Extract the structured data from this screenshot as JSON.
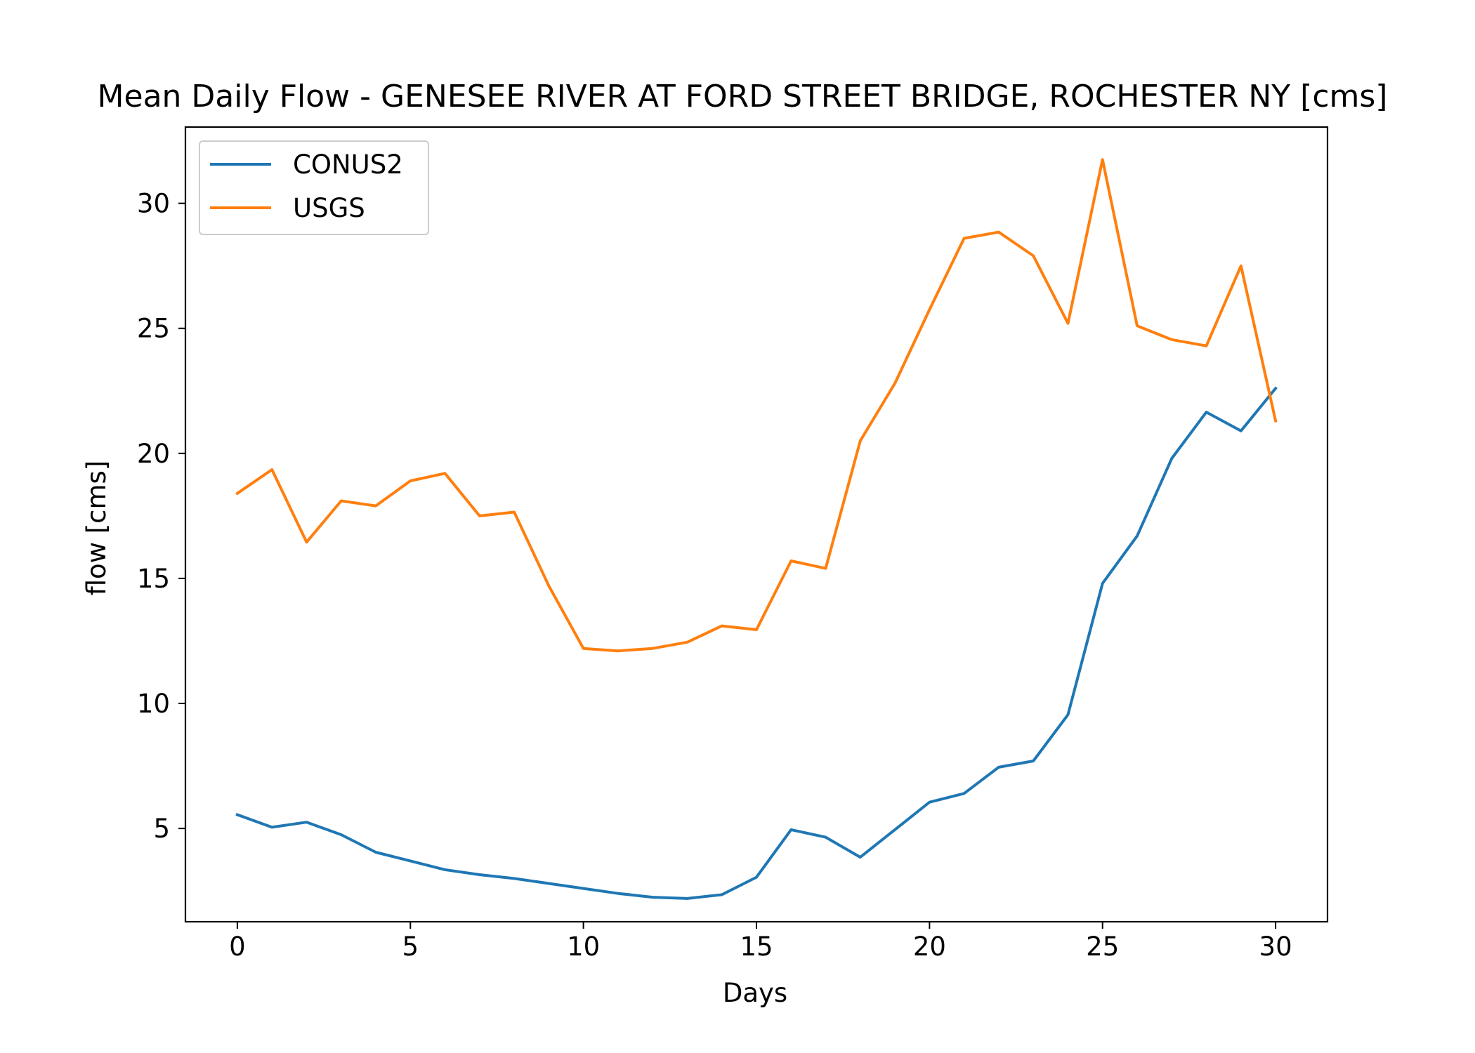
{
  "chart_data": {
    "type": "line",
    "title": "Mean Daily Flow - GENESEE RIVER AT FORD STREET BRIDGE, ROCHESTER NY [cms]",
    "xlabel": "Days",
    "ylabel": "flow [cms]",
    "xlim": [
      -1.5,
      31.5
    ],
    "ylim": [
      1.27,
      33.05
    ],
    "xticks": [
      0,
      5,
      10,
      15,
      20,
      25,
      30
    ],
    "yticks": [
      5,
      10,
      15,
      20,
      25,
      30
    ],
    "grid": false,
    "legend_position": "upper-left",
    "x": [
      0,
      1,
      2,
      3,
      4,
      5,
      6,
      7,
      8,
      9,
      10,
      11,
      12,
      13,
      14,
      15,
      16,
      17,
      18,
      19,
      20,
      21,
      22,
      23,
      24,
      25,
      26,
      27,
      28,
      29,
      30
    ],
    "series": [
      {
        "name": "CONUS2",
        "color": "#1f77b4",
        "values": [
          5.55,
          5.05,
          5.25,
          4.75,
          4.05,
          3.7,
          3.35,
          3.15,
          3.0,
          2.8,
          2.6,
          2.4,
          2.25,
          2.2,
          2.35,
          3.05,
          4.95,
          4.65,
          3.85,
          4.95,
          6.05,
          6.4,
          7.45,
          7.7,
          9.55,
          14.8,
          16.7,
          19.8,
          21.65,
          20.9,
          22.6
        ]
      },
      {
        "name": "USGS",
        "color": "#ff7f0e",
        "values": [
          18.4,
          19.35,
          16.45,
          18.1,
          17.9,
          18.9,
          19.2,
          17.5,
          17.65,
          14.7,
          12.2,
          12.1,
          12.2,
          12.45,
          13.1,
          12.95,
          15.7,
          15.4,
          20.5,
          22.8,
          25.75,
          28.6,
          28.85,
          27.9,
          25.2,
          31.75,
          25.1,
          24.55,
          24.3,
          27.5,
          21.3
        ]
      }
    ]
  }
}
